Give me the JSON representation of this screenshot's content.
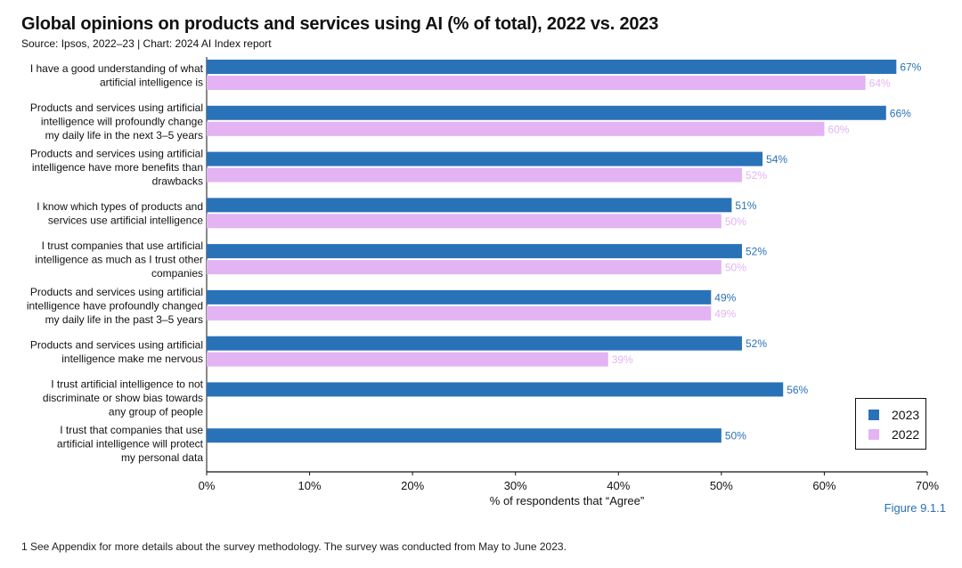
{
  "header": {
    "title": "Global opinions on products and services using AI (% of total), 2022 vs. 2023",
    "subtitle": "Source: Ipsos, 2022–23 | Chart: 2024 AI Index report"
  },
  "figure_label": "Figure 9.1.1",
  "footnote": "1 See Appendix for more details about the survey methodology. The survey was conducted from May to June 2023.",
  "colors": {
    "series_2023": "#2a72b8",
    "series_2022": "#e3b3f3",
    "axis": "#111111"
  },
  "chart_data": {
    "type": "bar",
    "orientation": "horizontal",
    "xlabel": "% of respondents that “Agree”",
    "xlim": [
      0,
      70
    ],
    "xticks": [
      0,
      10,
      20,
      30,
      40,
      50,
      60,
      70
    ],
    "tick_suffix": "%",
    "grid": false,
    "legend_position": "bottom-right",
    "categories": [
      [
        "I have a good understanding of what",
        "artificial intelligence is"
      ],
      [
        "Products and services using artificial",
        "intelligence will profoundly change",
        "my daily life in the next 3–5 years"
      ],
      [
        "Products and services using artificial",
        "intelligence have more benefits than",
        "drawbacks"
      ],
      [
        "I know which types of products and",
        "services use artificial intelligence"
      ],
      [
        "I trust companies that use artificial",
        "intelligence as much as I trust other",
        "companies"
      ],
      [
        "Products and services using artificial",
        "intelligence have profoundly changed",
        "my daily life in the past 3–5 years"
      ],
      [
        "Products and services using artificial",
        "intelligence make me nervous"
      ],
      [
        "I trust artificial intelligence to not",
        "discriminate or show bias towards",
        "any group of people"
      ],
      [
        "I trust that companies that use",
        "artificial intelligence will protect",
        "my personal data"
      ]
    ],
    "series": [
      {
        "name": "2023",
        "color": "#2a72b8",
        "values": [
          67,
          66,
          54,
          51,
          52,
          49,
          52,
          56,
          50
        ]
      },
      {
        "name": "2022",
        "color": "#e3b3f3",
        "values": [
          64,
          60,
          52,
          50,
          50,
          49,
          39,
          null,
          null
        ]
      }
    ]
  }
}
